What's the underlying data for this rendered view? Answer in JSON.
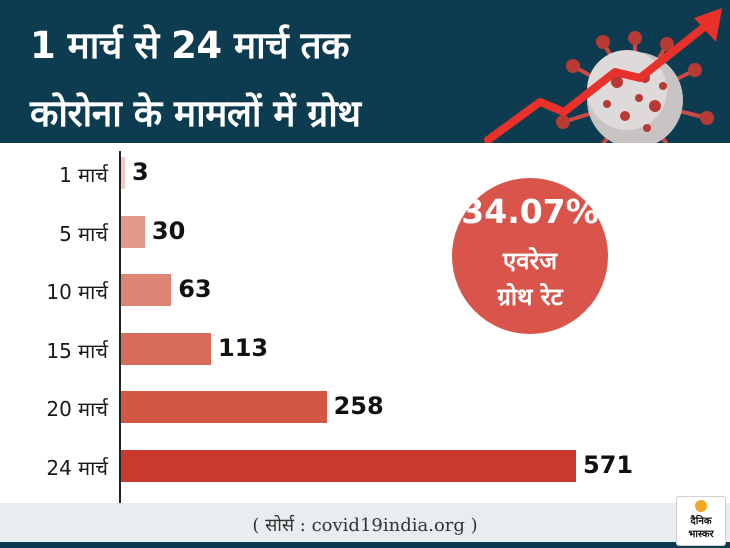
{
  "header": {
    "title_line1": "1 मार्च से 24 मार्च तक",
    "title_line2": "कोरोना के मामलों में ग्रोथ"
  },
  "chart_data": {
    "type": "bar",
    "orientation": "horizontal",
    "title": "1 मार्च से 24 मार्च तक कोरोना के मामलों में ग्रोथ",
    "categories": [
      "1 मार्च",
      "5 मार्च",
      "10 मार्च",
      "15 मार्च",
      "20 मार्च",
      "24 मार्च"
    ],
    "values": [
      3,
      30,
      63,
      113,
      258,
      571
    ],
    "xlim": [
      0,
      571
    ],
    "grid": false,
    "legend": "none",
    "bar_colors": [
      "#f0cdc2",
      "#e1998a",
      "#dd8574",
      "#d86b5a",
      "#d35745",
      "#c83a2e"
    ]
  },
  "badge": {
    "percent": "34.07%",
    "line1": "एवरेज",
    "line2": "ग्रोथ रेट"
  },
  "footer": {
    "source": "( सोर्स : covid19india.org )"
  },
  "logo": {
    "line1": "दैनिक",
    "line2": "भास्कर"
  },
  "colors": {
    "header_bg": "#0d3b4f",
    "badge_bg": "#d9544b",
    "arrow": "#e8312a",
    "virus": "#b83a35"
  },
  "icons": [
    "virus-icon",
    "trend-arrow-icon"
  ]
}
